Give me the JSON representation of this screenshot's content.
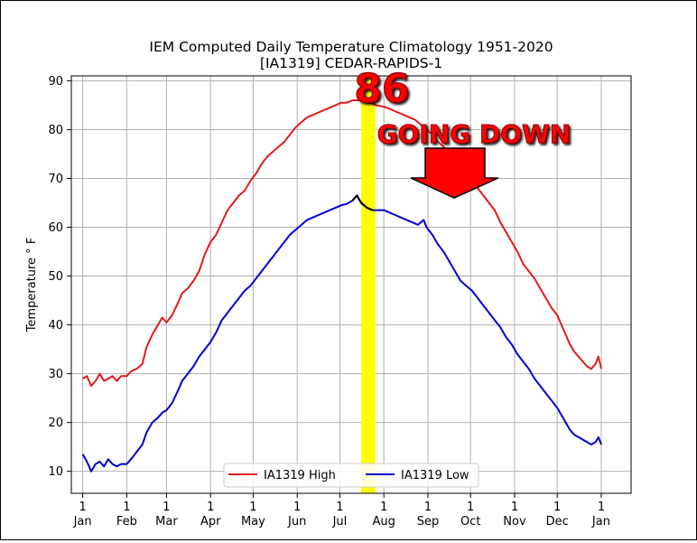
{
  "chart_data": {
    "type": "line",
    "title": "IEM Computed Daily Temperature Climatology 1951-2020",
    "subtitle": "[IA1319] CEDAR-RAPIDS-1",
    "ylabel": "Temperature ° F",
    "xlabel": "",
    "ylim": [
      5.5,
      91
    ],
    "xlim": [
      -8,
      386
    ],
    "grid": true,
    "legend_position": "bottom-center",
    "x_ticks": [
      {
        "day": 0,
        "number": "1",
        "month": "Jan"
      },
      {
        "day": 31,
        "number": "1",
        "month": "Feb"
      },
      {
        "day": 59,
        "number": "1",
        "month": "Mar"
      },
      {
        "day": 90,
        "number": "1",
        "month": "Apr"
      },
      {
        "day": 120,
        "number": "1",
        "month": "May"
      },
      {
        "day": 151,
        "number": "1",
        "month": "Jun"
      },
      {
        "day": 181,
        "number": "1",
        "month": "Jul"
      },
      {
        "day": 212,
        "number": "1",
        "month": "Aug"
      },
      {
        "day": 243,
        "number": "1",
        "month": "Sep"
      },
      {
        "day": 273,
        "number": "1",
        "month": "Oct"
      },
      {
        "day": 304,
        "number": "1",
        "month": "Nov"
      },
      {
        "day": 334,
        "number": "1",
        "month": "Dec"
      },
      {
        "day": 365,
        "number": "1",
        "month": "Jan"
      }
    ],
    "y_ticks": [
      10,
      20,
      30,
      40,
      50,
      60,
      70,
      80,
      90
    ],
    "series": [
      {
        "name": "IA1319 High",
        "color": "#e41a1c",
        "points": [
          [
            0,
            29.0
          ],
          [
            3,
            29.5
          ],
          [
            6,
            27.5
          ],
          [
            9,
            28.5
          ],
          [
            12,
            30.0
          ],
          [
            15,
            28.5
          ],
          [
            18,
            29.0
          ],
          [
            21,
            29.5
          ],
          [
            24,
            28.5
          ],
          [
            27,
            29.5
          ],
          [
            31,
            29.5
          ],
          [
            34,
            30.5
          ],
          [
            38,
            31.0
          ],
          [
            42,
            32.0
          ],
          [
            45,
            35.5
          ],
          [
            49,
            38.0
          ],
          [
            53,
            40.0
          ],
          [
            56,
            41.5
          ],
          [
            59,
            40.5
          ],
          [
            63,
            42.0
          ],
          [
            67,
            44.5
          ],
          [
            70,
            46.5
          ],
          [
            74,
            47.5
          ],
          [
            78,
            49.0
          ],
          [
            82,
            51.0
          ],
          [
            86,
            54.5
          ],
          [
            90,
            57.0
          ],
          [
            94,
            58.5
          ],
          [
            98,
            61.0
          ],
          [
            102,
            63.5
          ],
          [
            106,
            65.0
          ],
          [
            110,
            66.5
          ],
          [
            114,
            67.5
          ],
          [
            118,
            69.5
          ],
          [
            122,
            71.0
          ],
          [
            126,
            73.0
          ],
          [
            130,
            74.5
          ],
          [
            134,
            75.5
          ],
          [
            138,
            76.5
          ],
          [
            142,
            77.5
          ],
          [
            146,
            79.0
          ],
          [
            150,
            80.5
          ],
          [
            154,
            81.5
          ],
          [
            158,
            82.5
          ],
          [
            162,
            83.0
          ],
          [
            166,
            83.5
          ],
          [
            170,
            84.0
          ],
          [
            174,
            84.5
          ],
          [
            178,
            85.0
          ],
          [
            182,
            85.5
          ],
          [
            186,
            85.5
          ],
          [
            190,
            86.0
          ],
          [
            194,
            86.0
          ],
          [
            197,
            86.2
          ],
          [
            200,
            85.5
          ],
          [
            203,
            85.5
          ],
          [
            206,
            85.0
          ],
          [
            210,
            84.8
          ],
          [
            214,
            84.5
          ],
          [
            218,
            84.0
          ],
          [
            222,
            83.5
          ],
          [
            226,
            83.0
          ],
          [
            230,
            82.5
          ],
          [
            234,
            82.0
          ],
          [
            238,
            81.0
          ],
          [
            242,
            80.0
          ],
          [
            246,
            79.0
          ],
          [
            250,
            77.5
          ],
          [
            254,
            76.5
          ],
          [
            258,
            75.0
          ],
          [
            262,
            74.0
          ],
          [
            266,
            72.5
          ],
          [
            270,
            71.0
          ],
          [
            274,
            69.5
          ],
          [
            278,
            68.0
          ],
          [
            282,
            66.5
          ],
          [
            286,
            65.0
          ],
          [
            290,
            63.5
          ],
          [
            294,
            61.0
          ],
          [
            298,
            59.0
          ],
          [
            302,
            57.0
          ],
          [
            306,
            55.0
          ],
          [
            310,
            52.5
          ],
          [
            314,
            51.0
          ],
          [
            318,
            49.5
          ],
          [
            322,
            47.5
          ],
          [
            326,
            45.5
          ],
          [
            330,
            43.5
          ],
          [
            334,
            42.0
          ],
          [
            337,
            40.0
          ],
          [
            340,
            38.0
          ],
          [
            343,
            36.0
          ],
          [
            346,
            34.5
          ],
          [
            349,
            33.5
          ],
          [
            352,
            32.5
          ],
          [
            355,
            31.5
          ],
          [
            358,
            31.0
          ],
          [
            361,
            32.0
          ],
          [
            363,
            33.5
          ],
          [
            365,
            31.0
          ]
        ]
      },
      {
        "name": "IA1319 Low",
        "color": "#0000d4",
        "points": [
          [
            0,
            13.5
          ],
          [
            3,
            12.0
          ],
          [
            6,
            10.0
          ],
          [
            9,
            11.5
          ],
          [
            12,
            12.0
          ],
          [
            15,
            11.0
          ],
          [
            18,
            12.5
          ],
          [
            21,
            11.5
          ],
          [
            24,
            11.0
          ],
          [
            27,
            11.5
          ],
          [
            31,
            11.5
          ],
          [
            34,
            12.5
          ],
          [
            38,
            14.0
          ],
          [
            42,
            15.5
          ],
          [
            45,
            18.0
          ],
          [
            49,
            20.0
          ],
          [
            53,
            21.0
          ],
          [
            56,
            22.0
          ],
          [
            59,
            22.5
          ],
          [
            63,
            24.0
          ],
          [
            67,
            26.5
          ],
          [
            70,
            28.5
          ],
          [
            74,
            30.0
          ],
          [
            78,
            31.5
          ],
          [
            82,
            33.5
          ],
          [
            86,
            35.0
          ],
          [
            90,
            36.5
          ],
          [
            94,
            38.5
          ],
          [
            98,
            41.0
          ],
          [
            102,
            42.5
          ],
          [
            106,
            44.0
          ],
          [
            110,
            45.5
          ],
          [
            114,
            47.0
          ],
          [
            118,
            48.0
          ],
          [
            122,
            49.5
          ],
          [
            126,
            51.0
          ],
          [
            130,
            52.5
          ],
          [
            134,
            54.0
          ],
          [
            138,
            55.5
          ],
          [
            142,
            57.0
          ],
          [
            146,
            58.5
          ],
          [
            150,
            59.5
          ],
          [
            154,
            60.5
          ],
          [
            158,
            61.5
          ],
          [
            162,
            62.0
          ],
          [
            166,
            62.5
          ],
          [
            170,
            63.0
          ],
          [
            174,
            63.5
          ],
          [
            178,
            64.0
          ],
          [
            182,
            64.5
          ],
          [
            186,
            64.8
          ],
          [
            190,
            65.5
          ],
          [
            193,
            66.5
          ],
          [
            196,
            65.0
          ],
          [
            200,
            64.0
          ],
          [
            204,
            63.5
          ],
          [
            208,
            63.5
          ],
          [
            212,
            63.5
          ],
          [
            216,
            63.0
          ],
          [
            220,
            62.5
          ],
          [
            224,
            62.0
          ],
          [
            228,
            61.5
          ],
          [
            232,
            61.0
          ],
          [
            236,
            60.5
          ],
          [
            240,
            61.5
          ],
          [
            242,
            60.0
          ],
          [
            246,
            58.5
          ],
          [
            250,
            56.5
          ],
          [
            254,
            55.0
          ],
          [
            258,
            53.0
          ],
          [
            262,
            51.0
          ],
          [
            266,
            49.0
          ],
          [
            270,
            48.0
          ],
          [
            274,
            47.0
          ],
          [
            278,
            45.5
          ],
          [
            282,
            44.0
          ],
          [
            286,
            42.5
          ],
          [
            290,
            41.0
          ],
          [
            294,
            39.5
          ],
          [
            298,
            37.5
          ],
          [
            302,
            36.0
          ],
          [
            306,
            34.0
          ],
          [
            310,
            32.5
          ],
          [
            314,
            31.0
          ],
          [
            318,
            29.0
          ],
          [
            322,
            27.5
          ],
          [
            326,
            26.0
          ],
          [
            330,
            24.5
          ],
          [
            334,
            23.0
          ],
          [
            337,
            21.5
          ],
          [
            340,
            20.0
          ],
          [
            343,
            18.5
          ],
          [
            346,
            17.5
          ],
          [
            349,
            17.0
          ],
          [
            352,
            16.5
          ],
          [
            355,
            16.0
          ],
          [
            358,
            15.5
          ],
          [
            361,
            16.0
          ],
          [
            363,
            17.0
          ],
          [
            365,
            15.5
          ]
        ]
      }
    ],
    "highlight": {
      "x_start": 196,
      "x_end": 206,
      "color": "#ffff00",
      "peak_segment_color": "#000000",
      "peak_segment_x": [
        190,
        204
      ]
    },
    "annotations": {
      "peak_label": "86",
      "callout_text": "GOING DOWN",
      "callout_color": "#ff0000",
      "arrow_color": "#ff0000"
    }
  }
}
